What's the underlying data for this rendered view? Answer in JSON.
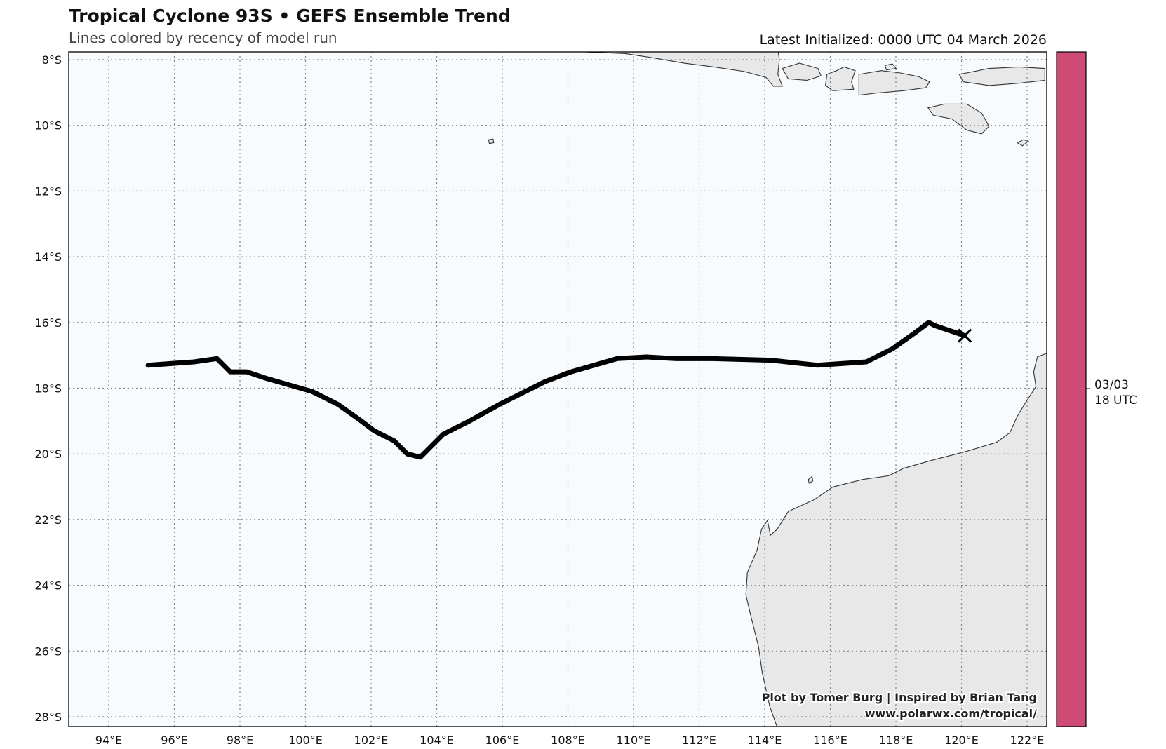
{
  "header": {
    "title": "Tropical Cyclone 93S • GEFS Ensemble Trend",
    "subtitle": "Lines colored by recency of model run",
    "initialized": "Latest Initialized: 0000 UTC 04 March 2026"
  },
  "credits": {
    "line1": "Plot by Tomer Burg | Inspired by Brian Tang",
    "line2": "www.polarwx.com/tropical/"
  },
  "colors": {
    "ocean": "#f7fbfd",
    "land": "#e8e8e8",
    "track": "#000000",
    "colorbar": "#cf4a74"
  },
  "chart_data": {
    "type": "line",
    "title": "Tropical Cyclone 93S • GEFS Ensemble Trend",
    "xlim": [
      92.8,
      122.6
    ],
    "ylim": [
      -28.3,
      -7.8
    ],
    "grid": true,
    "xticks": [
      94,
      96,
      98,
      100,
      102,
      104,
      106,
      108,
      110,
      112,
      114,
      116,
      118,
      120,
      122
    ],
    "xtick_labels": [
      "94°E",
      "96°E",
      "98°E",
      "100°E",
      "102°E",
      "104°E",
      "106°E",
      "108°E",
      "110°E",
      "112°E",
      "114°E",
      "116°E",
      "118°E",
      "120°E",
      "122°E"
    ],
    "yticks": [
      -8,
      -10,
      -12,
      -14,
      -16,
      -18,
      -20,
      -22,
      -24,
      -26,
      -28
    ],
    "ytick_labels": [
      "8°S",
      "10°S",
      "12°S",
      "14°S",
      "16°S",
      "18°S",
      "20°S",
      "22°S",
      "24°S",
      "26°S",
      "28°S"
    ],
    "colorbar": {
      "labels": [
        "03/03",
        "18 UTC"
      ],
      "color": "#cf4a74"
    },
    "series": [
      {
        "run": "03/03 18 UTC",
        "lon": [
          95.2,
          96.6,
          97.3,
          97.7,
          98.2,
          98.8,
          99.5,
          100.2,
          101.0,
          101.7,
          102.1,
          102.7,
          103.1,
          103.5,
          103.8,
          104.2,
          105.0,
          105.9,
          106.5,
          107.3,
          108.1,
          108.8,
          109.5,
          110.4,
          111.3,
          112.4,
          114.2,
          115.6,
          117.1,
          117.9,
          118.6,
          119.0,
          119.2,
          120.1
        ],
        "lat": [
          -17.3,
          -17.2,
          -17.1,
          -17.5,
          -17.5,
          -17.7,
          -17.9,
          -18.1,
          -18.5,
          -19.0,
          -19.3,
          -19.6,
          -20.0,
          -20.1,
          -19.8,
          -19.4,
          -19.0,
          -18.5,
          -18.2,
          -17.8,
          -17.5,
          -17.3,
          -17.1,
          -17.05,
          -17.1,
          -17.1,
          -17.15,
          -17.3,
          -17.2,
          -16.8,
          -16.3,
          -16.0,
          -16.1,
          -16.4
        ]
      }
    ],
    "latest_position_marker": "x"
  }
}
